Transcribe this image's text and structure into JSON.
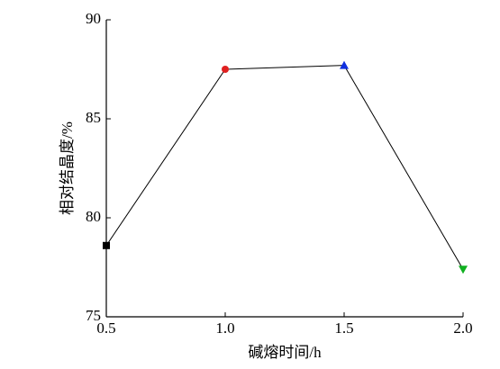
{
  "chart_data": {
    "type": "line",
    "x_label": "碱熔时间/h",
    "y_label": "相对结晶度/%",
    "x": [
      0.5,
      1.0,
      1.5,
      2.0
    ],
    "series": [
      {
        "values": [
          78.6,
          87.5,
          87.7,
          77.4
        ],
        "color": "#000000",
        "marker_colors": [
          "#000000",
          "#e02020",
          "#1030e0",
          "#10b020"
        ],
        "markers": [
          "square",
          "circle",
          "triangle-up",
          "triangle-down"
        ]
      }
    ],
    "xlim": [
      0.5,
      2.0
    ],
    "xticks": [
      0.5,
      {
        "value": 1,
        "label": "1.0"
      },
      1.5,
      {
        "value": 2,
        "label": "2.0"
      }
    ],
    "ylim": [
      75,
      90
    ],
    "yticks": [
      75,
      80,
      85,
      90
    ]
  }
}
